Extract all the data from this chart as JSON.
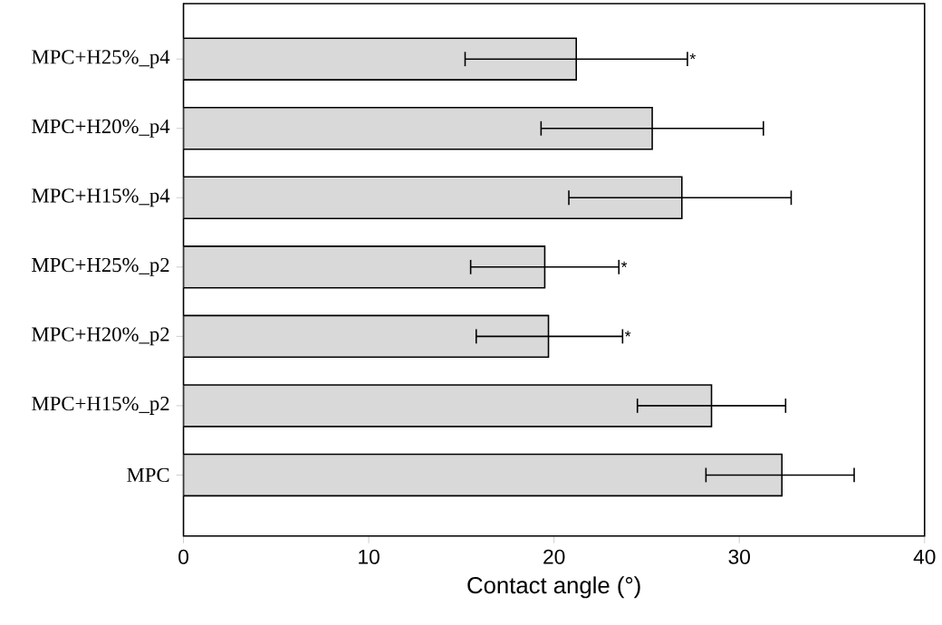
{
  "chart_data": {
    "type": "bar",
    "orientation": "horizontal",
    "xlabel": "Contact angle (°)",
    "categories": [
      "MPC+H25%_p4",
      "MPC+H20%_p4",
      "MPC+H15%_p4",
      "MPC+H25%_p2",
      "MPC+H20%_p2",
      "MPC+H15%_p2",
      "MPC"
    ],
    "values": [
      21.2,
      25.3,
      26.9,
      19.5,
      19.7,
      28.5,
      32.3
    ],
    "errors": [
      [
        15.2,
        27.2
      ],
      [
        19.3,
        31.3
      ],
      [
        20.8,
        32.8
      ],
      [
        15.5,
        23.5
      ],
      [
        15.8,
        23.7
      ],
      [
        24.5,
        32.5
      ],
      [
        28.2,
        36.2
      ]
    ],
    "color": "#d9d9d9",
    "xlim": [
      0,
      40
    ],
    "xticks": [
      0,
      10,
      20,
      30,
      40
    ],
    "annotations": [
      {
        "text": "*",
        "x": 27.2,
        "y": "MPC+H25%_p4"
      },
      {
        "text": "*",
        "x": 23.5,
        "y": "MPC+H25%_p2"
      },
      {
        "text": "*",
        "x": 23.7,
        "y": "MPC+H20%_p2"
      }
    ]
  }
}
